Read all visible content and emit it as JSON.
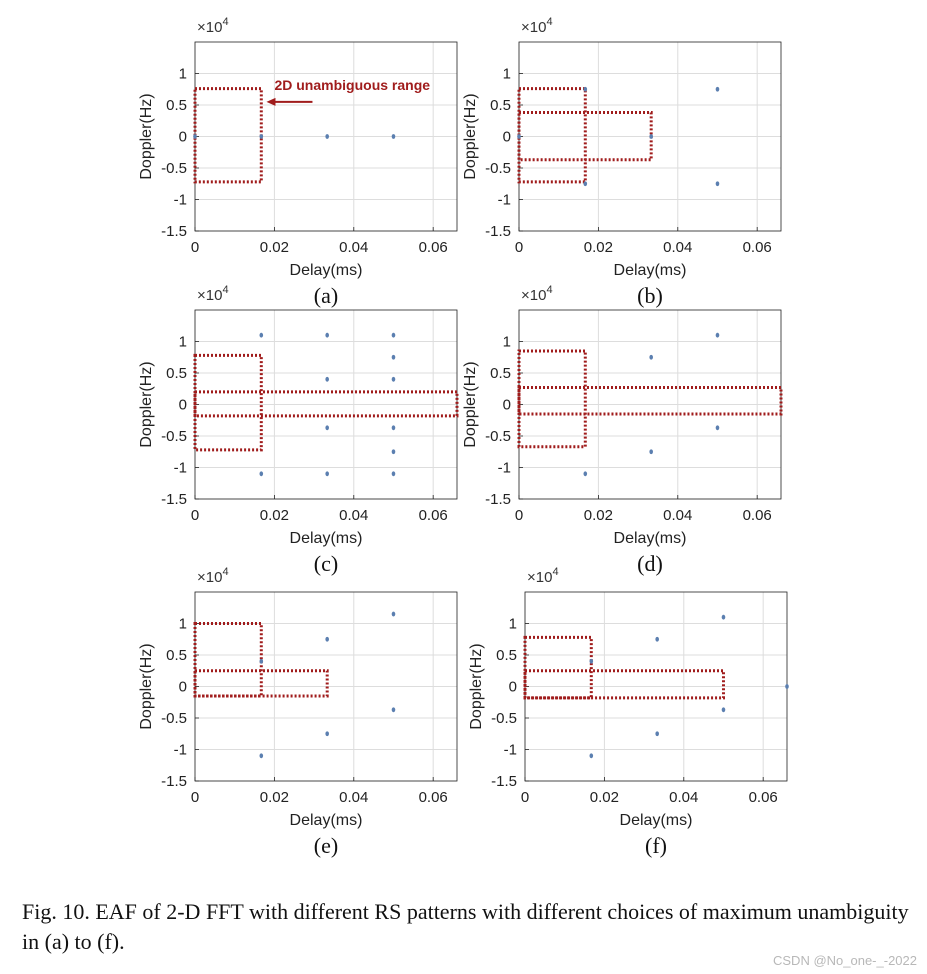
{
  "caption": "Fig. 10. EAF of 2-D FFT with different RS patterns with different choices of maximum unambiguity in (a) to (f).",
  "watermark": "CSDN @No_one-_-2022",
  "annotation_text": "2D unambiguous range",
  "colors": {
    "box": "#a01c1c",
    "point": "#5b7fb0",
    "axis": "#222222",
    "grid": "#dddddd"
  },
  "chart_data": [
    {
      "type": "scatter",
      "panel_label": "(a)",
      "xlabel": "Delay(ms)",
      "ylabel": "Doppler(Hz)",
      "y_exponent": "×10^4",
      "xlim": [
        0,
        0.066
      ],
      "ylim": [
        -1.5,
        1.5
      ],
      "xticks": [
        0,
        0.02,
        0.04,
        0.06
      ],
      "xtick_labels": [
        "0",
        "0.02",
        "0.04",
        "0.06"
      ],
      "yticks": [
        1,
        0.5,
        0,
        -0.5,
        -1,
        -1.5
      ],
      "ytick_labels": [
        "1",
        "0.5",
        "0",
        "-0.5",
        "-1",
        "-1.5"
      ],
      "grid": true,
      "points": [
        [
          0,
          0
        ],
        [
          0.0167,
          0
        ],
        [
          0.0333,
          0
        ],
        [
          0.05,
          0
        ]
      ],
      "regions": [
        {
          "x": [
            0,
            0.0167
          ],
          "y": [
            -0.72,
            0.76
          ]
        }
      ],
      "annotation": {
        "text": "2D unambiguous range",
        "x": 0.0175,
        "y": 0.55
      }
    },
    {
      "type": "scatter",
      "panel_label": "(b)",
      "xlabel": "Delay(ms)",
      "ylabel": "Doppler(Hz)",
      "y_exponent": "×10^4",
      "xlim": [
        0,
        0.066
      ],
      "ylim": [
        -1.5,
        1.5
      ],
      "xticks": [
        0,
        0.02,
        0.04,
        0.06
      ],
      "xtick_labels": [
        "0",
        "0.02",
        "0.04",
        "0.06"
      ],
      "yticks": [
        1,
        0.5,
        0,
        -0.5,
        -1,
        -1.5
      ],
      "ytick_labels": [
        "1",
        "0.5",
        "0",
        "-0.5",
        "-1",
        "-1.5"
      ],
      "grid": true,
      "points": [
        [
          0,
          0
        ],
        [
          0.0167,
          0.75
        ],
        [
          0.0167,
          -0.75
        ],
        [
          0.0333,
          0
        ],
        [
          0.05,
          0.75
        ],
        [
          0.05,
          -0.75
        ]
      ],
      "regions": [
        {
          "x": [
            0,
            0.0167
          ],
          "y": [
            -0.72,
            0.76
          ]
        },
        {
          "x": [
            0,
            0.0333
          ],
          "y": [
            -0.37,
            0.38
          ]
        }
      ]
    },
    {
      "type": "scatter",
      "panel_label": "(c)",
      "xlabel": "Delay(ms)",
      "ylabel": "Doppler(Hz)",
      "y_exponent": "×10^4",
      "xlim": [
        0,
        0.066
      ],
      "ylim": [
        -1.5,
        1.5
      ],
      "xticks": [
        0,
        0.02,
        0.04,
        0.06
      ],
      "xtick_labels": [
        "0",
        "0.02",
        "0.04",
        "0.06"
      ],
      "yticks": [
        1,
        0.5,
        0,
        -0.5,
        -1,
        -1.5
      ],
      "ytick_labels": [
        "1",
        "0.5",
        "0",
        "-0.5",
        "-1",
        "-1.5"
      ],
      "grid": true,
      "points": [
        [
          0.0167,
          1.1
        ],
        [
          0.0333,
          1.1
        ],
        [
          0.05,
          1.1
        ],
        [
          0.05,
          0.75
        ],
        [
          0.0333,
          0.4
        ],
        [
          0.05,
          0.4
        ],
        [
          0.0333,
          -0.37
        ],
        [
          0.05,
          -0.37
        ],
        [
          0.05,
          -0.75
        ],
        [
          0.0167,
          -1.1
        ],
        [
          0.0333,
          -1.1
        ],
        [
          0.05,
          -1.1
        ]
      ],
      "regions": [
        {
          "x": [
            0,
            0.0167
          ],
          "y": [
            -0.72,
            0.78
          ]
        },
        {
          "x": [
            0,
            0.066
          ],
          "y": [
            -0.18,
            0.2
          ]
        }
      ]
    },
    {
      "type": "scatter",
      "panel_label": "(d)",
      "xlabel": "Delay(ms)",
      "ylabel": "Doppler(Hz)",
      "y_exponent": "×10^4",
      "xlim": [
        0,
        0.066
      ],
      "ylim": [
        -1.5,
        1.5
      ],
      "xticks": [
        0,
        0.02,
        0.04,
        0.06
      ],
      "xtick_labels": [
        "0",
        "0.02",
        "0.04",
        "0.06"
      ],
      "yticks": [
        1,
        0.5,
        0,
        -0.5,
        -1,
        -1.5
      ],
      "ytick_labels": [
        "1",
        "0.5",
        "0",
        "-0.5",
        "-1",
        "-1.5"
      ],
      "grid": true,
      "points": [
        [
          0.05,
          1.1
        ],
        [
          0.0333,
          0.75
        ],
        [
          0.05,
          -0.37
        ],
        [
          0.0333,
          -0.75
        ],
        [
          0.0167,
          -1.1
        ]
      ],
      "regions": [
        {
          "x": [
            0,
            0.0167
          ],
          "y": [
            -0.67,
            0.85
          ]
        },
        {
          "x": [
            0,
            0.066
          ],
          "y": [
            -0.15,
            0.27
          ]
        }
      ]
    },
    {
      "type": "scatter",
      "panel_label": "(e)",
      "xlabel": "Delay(ms)",
      "ylabel": "Doppler(Hz)",
      "y_exponent": "×10^4",
      "xlim": [
        0,
        0.066
      ],
      "ylim": [
        -1.5,
        1.5
      ],
      "xticks": [
        0,
        0.02,
        0.04,
        0.06
      ],
      "xtick_labels": [
        "0",
        "0.02",
        "0.04",
        "0.06"
      ],
      "yticks": [
        1,
        0.5,
        0,
        -0.5,
        -1,
        -1.5
      ],
      "ytick_labels": [
        "1",
        "0.5",
        "0",
        "-0.5",
        "-1",
        "-1.5"
      ],
      "grid": true,
      "points": [
        [
          0.05,
          1.15
        ],
        [
          0.0333,
          0.75
        ],
        [
          0.0167,
          0.4
        ],
        [
          0.05,
          -0.37
        ],
        [
          0.0333,
          -0.75
        ],
        [
          0.0167,
          -1.1
        ]
      ],
      "regions": [
        {
          "x": [
            0,
            0.0167
          ],
          "y": [
            -0.15,
            1.0
          ]
        },
        {
          "x": [
            0,
            0.0333
          ],
          "y": [
            -0.15,
            0.25
          ]
        }
      ]
    },
    {
      "type": "scatter",
      "panel_label": "(f)",
      "xlabel": "Delay(ms)",
      "ylabel": "Doppler(Hz)",
      "y_exponent": "×10^4",
      "xlim": [
        0,
        0.066
      ],
      "ylim": [
        -1.5,
        1.5
      ],
      "xticks": [
        0,
        0.02,
        0.04,
        0.06
      ],
      "xtick_labels": [
        "0",
        "0.02",
        "0.04",
        "0.06"
      ],
      "yticks": [
        1,
        0.5,
        0,
        -0.5,
        -1,
        -1.5
      ],
      "ytick_labels": [
        "1",
        "0.5",
        "0",
        "-0.5",
        "-1",
        "-1.5"
      ],
      "grid": true,
      "points": [
        [
          0.05,
          1.1
        ],
        [
          0.0333,
          0.75
        ],
        [
          0.0167,
          0.4
        ],
        [
          0.05,
          -0.37
        ],
        [
          0.0333,
          -0.75
        ],
        [
          0.0167,
          -1.1
        ],
        [
          0.066,
          0
        ]
      ],
      "regions": [
        {
          "x": [
            0,
            0.0167
          ],
          "y": [
            -0.18,
            0.78
          ]
        },
        {
          "x": [
            0,
            0.05
          ],
          "y": [
            -0.18,
            0.25
          ]
        }
      ]
    }
  ]
}
